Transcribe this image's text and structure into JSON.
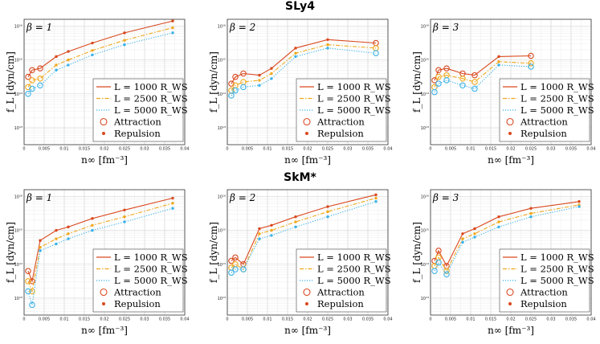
{
  "figure": {
    "row_titles": [
      "SLy4",
      "SkM*"
    ],
    "x_label": "n∞ [fm⁻³]",
    "y_label": "f_L [dyn/cm]",
    "legend": [
      "L = 1000 R_WS",
      "L = 2500 R_WS",
      "L = 5000 R_WS",
      "Attraction",
      "Repulsion"
    ],
    "x_ticks": [
      "0",
      "0.005",
      "0.01",
      "0.015",
      "0.02",
      "0.025",
      "0.03",
      "0.035",
      "0.04"
    ],
    "y_ticks": [
      "10¹⁶",
      "10¹⁵",
      "10¹⁴",
      "10¹³"
    ],
    "series_colors": {
      "L1000": "#d9481e",
      "L2500": "#f0a81c",
      "L5000": "#3bb2e8"
    }
  },
  "chart_data": [
    {
      "type": "line",
      "row": "SLy4",
      "panel_label": "β = 1",
      "xlabel": "n∞ [fm⁻³]",
      "ylabel": "f_L [dyn/cm]",
      "xlim": [
        0,
        0.04
      ],
      "ylim_log10": [
        12.5,
        16.2
      ],
      "x": [
        0.001,
        0.002,
        0.004,
        0.008,
        0.011,
        0.017,
        0.025,
        0.037
      ],
      "series": [
        {
          "name": "L = 1000 R_WS",
          "log10_values": [
            14.5,
            14.7,
            14.75,
            15.1,
            15.25,
            15.5,
            15.8,
            16.15
          ],
          "markers": [
            "attraction",
            "attraction",
            "attraction",
            "repulsion",
            "repulsion",
            "repulsion",
            "repulsion",
            "repulsion"
          ]
        },
        {
          "name": "L = 2500 R_WS",
          "log10_values": [
            14.2,
            14.4,
            14.45,
            14.85,
            15.0,
            15.28,
            15.58,
            15.95
          ],
          "markers": [
            "attraction",
            "attraction",
            "attraction",
            "repulsion",
            "repulsion",
            "repulsion",
            "repulsion",
            "repulsion"
          ]
        },
        {
          "name": "L = 5000 R_WS",
          "log10_values": [
            14.0,
            14.15,
            14.25,
            14.7,
            14.85,
            15.15,
            15.45,
            15.8
          ],
          "markers": [
            "attraction",
            "attraction",
            "attraction",
            "repulsion",
            "repulsion",
            "repulsion",
            "repulsion",
            "repulsion"
          ]
        }
      ]
    },
    {
      "type": "line",
      "row": "SLy4",
      "panel_label": "β = 2",
      "xlabel": "n∞ [fm⁻³]",
      "ylabel": "f_L [dyn/cm]",
      "xlim": [
        0,
        0.04
      ],
      "ylim_log10": [
        12.5,
        16.2
      ],
      "x": [
        0.001,
        0.002,
        0.004,
        0.008,
        0.011,
        0.017,
        0.025,
        0.037
      ],
      "series": [
        {
          "name": "L = 1000 R_WS",
          "log10_values": [
            14.3,
            14.5,
            14.6,
            14.55,
            14.75,
            15.35,
            15.6,
            15.5
          ],
          "markers": [
            "attraction",
            "attraction",
            "attraction",
            "repulsion",
            "repulsion",
            "repulsion",
            "repulsion",
            "attraction"
          ]
        },
        {
          "name": "L = 2500 R_WS",
          "log10_values": [
            14.1,
            14.25,
            14.35,
            14.4,
            14.6,
            15.2,
            15.45,
            15.35
          ],
          "markers": [
            "attraction",
            "attraction",
            "attraction",
            "repulsion",
            "repulsion",
            "repulsion",
            "repulsion",
            "attraction"
          ]
        },
        {
          "name": "L = 5000 R_WS",
          "log10_values": [
            13.95,
            14.1,
            14.2,
            14.25,
            14.45,
            15.1,
            15.35,
            15.2
          ],
          "markers": [
            "attraction",
            "attraction",
            "attraction",
            "repulsion",
            "repulsion",
            "repulsion",
            "repulsion",
            "attraction"
          ]
        }
      ]
    },
    {
      "type": "line",
      "row": "SLy4",
      "panel_label": "β = 3",
      "xlabel": "n∞ [fm⁻³]",
      "ylabel": "f_L [dyn/cm]",
      "xlim": [
        0,
        0.04
      ],
      "ylim_log10": [
        12.5,
        16.2
      ],
      "x": [
        0.001,
        0.002,
        0.004,
        0.008,
        0.011,
        0.017,
        0.025
      ],
      "series": [
        {
          "name": "L = 1000 R_WS",
          "log10_values": [
            14.4,
            14.7,
            14.75,
            14.6,
            14.55,
            15.1,
            15.12
          ],
          "markers": [
            "attraction",
            "attraction",
            "attraction",
            "attraction",
            "attraction",
            "repulsion",
            "attraction"
          ]
        },
        {
          "name": "L = 2500 R_WS",
          "log10_values": [
            14.2,
            14.5,
            14.55,
            14.45,
            14.35,
            14.95,
            14.9
          ],
          "markers": [
            "attraction",
            "attraction",
            "attraction",
            "attraction",
            "attraction",
            "repulsion",
            "attraction"
          ]
        },
        {
          "name": "L = 5000 R_WS",
          "log10_values": [
            14.05,
            14.3,
            14.4,
            14.25,
            14.15,
            14.85,
            14.8
          ],
          "markers": [
            "attraction",
            "attraction",
            "attraction",
            "attraction",
            "attraction",
            "repulsion",
            "attraction"
          ]
        }
      ]
    },
    {
      "type": "line",
      "row": "SkM*",
      "panel_label": "β = 1",
      "xlabel": "n∞ [fm⁻³]",
      "ylabel": "f_L [dyn/cm]",
      "xlim": [
        0,
        0.04
      ],
      "ylim_log10": [
        12.5,
        16.2
      ],
      "x": [
        0.001,
        0.002,
        0.004,
        0.008,
        0.011,
        0.017,
        0.025,
        0.037
      ],
      "series": [
        {
          "name": "L = 1000 R_WS",
          "log10_values": [
            13.8,
            13.5,
            14.7,
            15.0,
            15.1,
            15.35,
            15.6,
            15.95
          ],
          "markers": [
            "attraction",
            "attraction",
            "repulsion",
            "repulsion",
            "repulsion",
            "repulsion",
            "repulsion",
            "repulsion"
          ]
        },
        {
          "name": "L = 2500 R_WS",
          "log10_values": [
            13.5,
            13.2,
            14.5,
            14.75,
            14.9,
            15.15,
            15.4,
            15.8
          ],
          "markers": [
            "attraction",
            "attraction",
            "repulsion",
            "repulsion",
            "repulsion",
            "repulsion",
            "repulsion",
            "repulsion"
          ]
        },
        {
          "name": "L = 5000 R_WS",
          "log10_values": [
            13.2,
            12.8,
            14.4,
            14.6,
            14.75,
            15.0,
            15.25,
            15.65
          ],
          "markers": [
            "attraction",
            "attraction",
            "repulsion",
            "repulsion",
            "repulsion",
            "repulsion",
            "repulsion",
            "repulsion"
          ]
        }
      ]
    },
    {
      "type": "line",
      "row": "SkM*",
      "panel_label": "β = 2",
      "xlabel": "n∞ [fm⁻³]",
      "ylabel": "f_L [dyn/cm]",
      "xlim": [
        0,
        0.04
      ],
      "ylim_log10": [
        12.5,
        16.2
      ],
      "x": [
        0.001,
        0.002,
        0.004,
        0.008,
        0.011,
        0.017,
        0.025,
        0.037
      ],
      "series": [
        {
          "name": "L = 1000 R_WS",
          "log10_values": [
            14.1,
            14.2,
            14.0,
            15.05,
            15.15,
            15.4,
            15.7,
            16.05
          ],
          "markers": [
            "attraction",
            "attraction",
            "attraction",
            "repulsion",
            "repulsion",
            "repulsion",
            "repulsion",
            "repulsion"
          ]
        },
        {
          "name": "L = 2500 R_WS",
          "log10_values": [
            13.9,
            14.0,
            13.85,
            14.9,
            15.0,
            15.25,
            15.55,
            15.95
          ],
          "markers": [
            "attraction",
            "attraction",
            "attraction",
            "repulsion",
            "repulsion",
            "repulsion",
            "repulsion",
            "repulsion"
          ]
        },
        {
          "name": "L = 5000 R_WS",
          "log10_values": [
            13.75,
            13.85,
            13.85,
            14.75,
            14.85,
            15.1,
            15.4,
            15.85
          ],
          "markers": [
            "attraction",
            "attraction",
            "attraction",
            "repulsion",
            "repulsion",
            "repulsion",
            "repulsion",
            "repulsion"
          ]
        }
      ]
    },
    {
      "type": "line",
      "row": "SkM*",
      "panel_label": "β = 3",
      "xlabel": "n∞ [fm⁻³]",
      "ylabel": "f_L [dyn/cm]",
      "xlim": [
        0,
        0.04
      ],
      "ylim_log10": [
        12.5,
        16.2
      ],
      "x": [
        0.001,
        0.002,
        0.004,
        0.008,
        0.011,
        0.017,
        0.025,
        0.037
      ],
      "series": [
        {
          "name": "L = 1000 R_WS",
          "log10_values": [
            14.1,
            14.4,
            13.95,
            14.9,
            15.05,
            15.4,
            15.65,
            15.85
          ],
          "markers": [
            "attraction",
            "attraction",
            "attraction",
            "repulsion",
            "repulsion",
            "repulsion",
            "repulsion",
            "repulsion"
          ]
        },
        {
          "name": "L = 2500 R_WS",
          "log10_values": [
            13.95,
            14.2,
            13.8,
            14.75,
            14.9,
            15.25,
            15.5,
            15.75
          ],
          "markers": [
            "attraction",
            "attraction",
            "attraction",
            "repulsion",
            "repulsion",
            "repulsion",
            "repulsion",
            "repulsion"
          ]
        },
        {
          "name": "L = 5000 R_WS",
          "log10_values": [
            13.8,
            14.05,
            13.7,
            14.65,
            14.8,
            15.1,
            15.4,
            15.7
          ],
          "markers": [
            "attraction",
            "attraction",
            "attraction",
            "repulsion",
            "repulsion",
            "repulsion",
            "repulsion",
            "repulsion"
          ]
        }
      ]
    }
  ]
}
